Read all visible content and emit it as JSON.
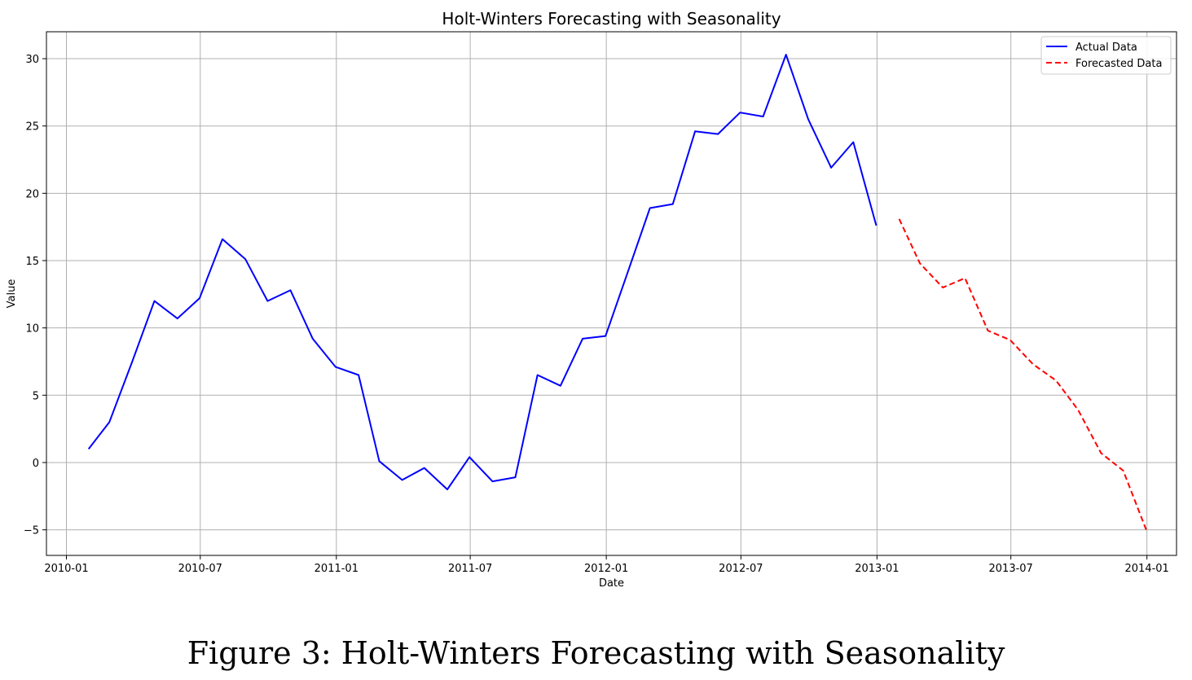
{
  "caption": "Figure 3: Holt-Winters Forecasting with Seasonality",
  "chart_data": {
    "type": "line",
    "title": "Holt-Winters Forecasting with Seasonality",
    "xlabel": "Date",
    "ylabel": "Value",
    "x_type": "date",
    "xlim": [
      "2009-12-05",
      "2014-02-10"
    ],
    "ylim": [
      -6.9,
      32
    ],
    "xticks": [
      "2010-01",
      "2010-07",
      "2011-01",
      "2011-07",
      "2012-01",
      "2012-07",
      "2013-01",
      "2013-07",
      "2014-01"
    ],
    "yticks": [
      -5,
      0,
      5,
      10,
      15,
      20,
      25,
      30
    ],
    "grid": true,
    "legend_position": "top-right",
    "series": [
      {
        "name": "Actual Data",
        "color": "#0000ff",
        "style": "solid",
        "x": [
          "2010-01-31",
          "2010-02-28",
          "2010-03-31",
          "2010-04-30",
          "2010-05-31",
          "2010-06-30",
          "2010-07-31",
          "2010-08-31",
          "2010-09-30",
          "2010-10-31",
          "2010-11-30",
          "2010-12-31",
          "2011-01-31",
          "2011-02-28",
          "2011-03-31",
          "2011-04-30",
          "2011-05-31",
          "2011-06-30",
          "2011-07-31",
          "2011-08-31",
          "2011-09-30",
          "2011-10-31",
          "2011-11-30",
          "2011-12-31",
          "2012-01-31",
          "2012-02-29",
          "2012-03-31",
          "2012-04-30",
          "2012-05-31",
          "2012-06-30",
          "2012-07-31",
          "2012-08-31",
          "2012-09-30",
          "2012-10-31",
          "2012-11-30",
          "2012-12-31"
        ],
        "values": [
          1.0,
          3.0,
          7.5,
          12.0,
          10.7,
          12.2,
          16.6,
          15.1,
          12.0,
          12.8,
          9.2,
          7.1,
          6.5,
          0.1,
          -1.3,
          -0.4,
          -2.0,
          0.4,
          -1.4,
          -1.1,
          6.5,
          5.7,
          9.2,
          9.4,
          14.3,
          18.9,
          19.2,
          24.6,
          24.4,
          26.0,
          25.7,
          30.3,
          25.5,
          21.9,
          23.8,
          17.6
        ]
      },
      {
        "name": "Forecasted Data",
        "color": "#ff0000",
        "style": "dashed",
        "x": [
          "2013-01-31",
          "2013-02-28",
          "2013-03-31",
          "2013-04-30",
          "2013-05-31",
          "2013-06-30",
          "2013-07-31",
          "2013-08-31",
          "2013-09-30",
          "2013-10-31",
          "2013-11-30",
          "2013-12-31"
        ],
        "values": [
          18.1,
          14.8,
          13.0,
          13.7,
          9.8,
          9.1,
          7.3,
          6.1,
          3.9,
          0.7,
          -0.6,
          -5.0
        ]
      }
    ]
  }
}
